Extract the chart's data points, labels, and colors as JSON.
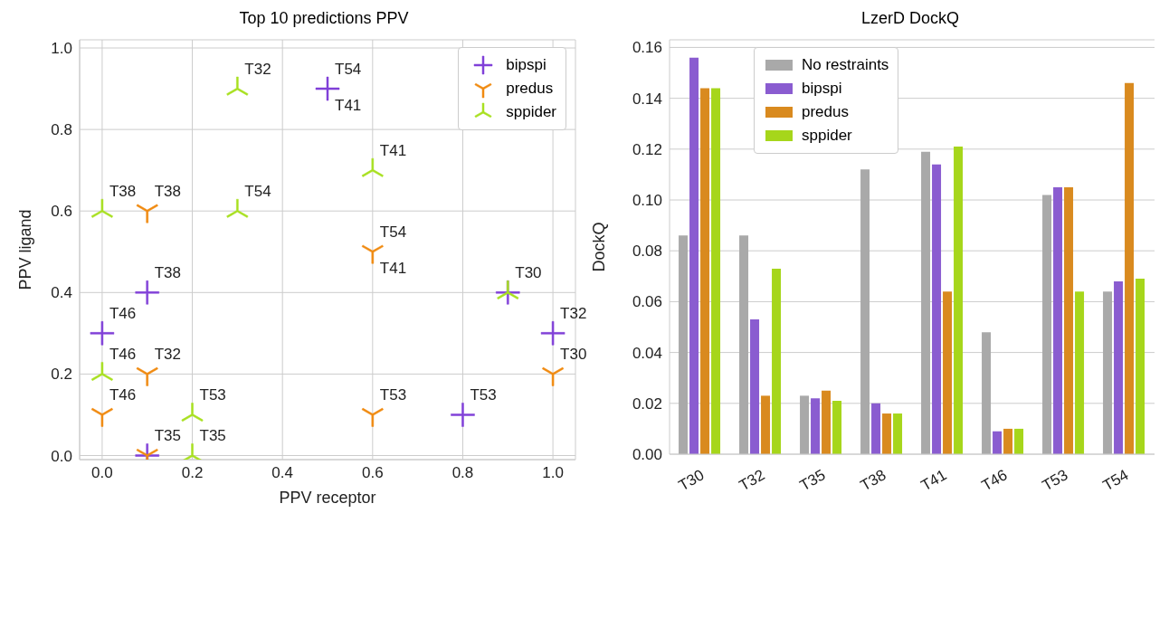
{
  "chart_data": [
    {
      "type": "scatter",
      "title": "Top 10 predictions PPV",
      "xlabel": "PPV receptor",
      "ylabel": "PPV ligand",
      "grid": true,
      "legend": "top right",
      "xlim": [
        -0.05,
        1.05
      ],
      "xticks": [
        {
          "value": 0,
          "label": "0.0"
        },
        {
          "value": 0.2,
          "label": "0.2"
        },
        {
          "value": 0.4,
          "label": "0.4"
        },
        {
          "value": 0.6,
          "label": "0.6"
        },
        {
          "value": 0.8,
          "label": "0.8"
        },
        {
          "value": 1,
          "label": "1.0"
        }
      ],
      "ylim": [
        -0.01,
        1.02
      ],
      "yticks": [
        {
          "value": 0,
          "label": "0.0"
        },
        {
          "value": 0.2,
          "label": "0.2"
        },
        {
          "value": 0.4,
          "label": "0.4"
        },
        {
          "value": 0.6,
          "label": "0.6"
        },
        {
          "value": 0.8,
          "label": "0.8"
        },
        {
          "value": 1,
          "label": "1.0"
        }
      ],
      "series": [
        {
          "name": "bipspi",
          "color": "#8040d8",
          "marker": "cross",
          "x": [
            0.5,
            0.9,
            0.1,
            0,
            1,
            0.8,
            0.1
          ],
          "values": [
            0.9,
            0.4,
            0.4,
            0.3,
            0.3,
            0.1,
            0
          ]
        },
        {
          "name": "predus",
          "color": "#f08a10",
          "marker": "triangle_down",
          "x": [
            0.1,
            0.6,
            0.1,
            1,
            0,
            0.6,
            0.1
          ],
          "values": [
            0.6,
            0.5,
            0.2,
            0.2,
            0.1,
            0.1,
            0
          ]
        },
        {
          "name": "sppider",
          "color": "#a8e020",
          "marker": "triangle",
          "x": [
            0.3,
            0.6,
            0,
            0.3,
            0.9,
            0,
            0.2,
            0.2
          ],
          "values": [
            0.9,
            0.7,
            0.6,
            0.6,
            0.4,
            0.2,
            0.1,
            0
          ]
        }
      ],
      "annotations": [
        {
          "text": "T54",
          "x": 0.5,
          "y": 0.9
        },
        {
          "text": "T41",
          "x": 0.5,
          "y": 0.9
        },
        {
          "text": "T30",
          "x": 0.9,
          "y": 0.4
        },
        {
          "text": "T38",
          "x": 0.1,
          "y": 0.4
        },
        {
          "text": "T46",
          "x": 0,
          "y": 0.3
        },
        {
          "text": "T32",
          "x": 1,
          "y": 0.3
        },
        {
          "text": "T53",
          "x": 0.8,
          "y": 0.1
        },
        {
          "text": "T35",
          "x": 0.1,
          "y": 0
        },
        {
          "text": "T38",
          "x": 0.1,
          "y": 0.6
        },
        {
          "text": "T54",
          "x": 0.6,
          "y": 0.5
        },
        {
          "text": "T41",
          "x": 0.6,
          "y": 0.5
        },
        {
          "text": "T32",
          "x": 0.1,
          "y": 0.2
        },
        {
          "text": "T30",
          "x": 1,
          "y": 0.2
        },
        {
          "text": "T46",
          "x": 0,
          "y": 0.1
        },
        {
          "text": "T53",
          "x": 0.6,
          "y": 0.1
        },
        {
          "text": "T32",
          "x": 0.3,
          "y": 0.9
        },
        {
          "text": "T41",
          "x": 0.6,
          "y": 0.7
        },
        {
          "text": "T38",
          "x": 0,
          "y": 0.6
        },
        {
          "text": "T54",
          "x": 0.3,
          "y": 0.6
        },
        {
          "text": "T46",
          "x": 0,
          "y": 0.2
        },
        {
          "text": "T53",
          "x": 0.2,
          "y": 0.1
        },
        {
          "text": "T35",
          "x": 0.2,
          "y": 0
        }
      ]
    },
    {
      "type": "bar",
      "title": "LzerD DockQ",
      "ylabel": "DockQ",
      "grid": "y",
      "legend": "top",
      "categories": [
        "T30",
        "T32",
        "T35",
        "T38",
        "T41",
        "T46",
        "T53",
        "T54"
      ],
      "ylim": [
        0,
        0.163
      ],
      "yticks": [
        {
          "value": 0,
          "label": "0.00"
        },
        {
          "value": 0.02,
          "label": "0.02"
        },
        {
          "value": 0.04,
          "label": "0.04"
        },
        {
          "value": 0.06,
          "label": "0.06"
        },
        {
          "value": 0.08,
          "label": "0.08"
        },
        {
          "value": 0.1,
          "label": "0.10"
        },
        {
          "value": 0.12,
          "label": "0.12"
        },
        {
          "value": 0.14,
          "label": "0.14"
        },
        {
          "value": 0.16,
          "label": "0.16"
        }
      ],
      "series": [
        {
          "name": "No restraints",
          "color": "#a9a9a9",
          "values": [
            0.086,
            0.086,
            0.023,
            0.112,
            0.119,
            0.048,
            0.102,
            0.064
          ]
        },
        {
          "name": "bipspi",
          "color": "#8a5cd0",
          "values": [
            0.156,
            0.053,
            0.022,
            0.02,
            0.114,
            0.009,
            0.105,
            0.068
          ]
        },
        {
          "name": "predus",
          "color": "#d98a1f",
          "values": [
            0.144,
            0.023,
            0.025,
            0.016,
            0.064,
            0.01,
            0.105,
            0.146
          ]
        },
        {
          "name": "sppider",
          "color": "#a6d61b",
          "values": [
            0.144,
            0.073,
            0.021,
            0.016,
            0.121,
            0.01,
            0.064,
            0.069
          ]
        }
      ]
    }
  ]
}
